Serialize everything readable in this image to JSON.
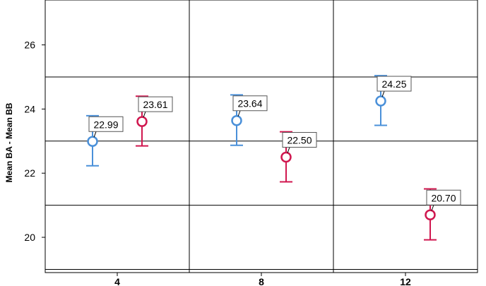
{
  "chart_data": {
    "type": "scatter",
    "ylabel": "Mean BA - Mean BB",
    "xlabel": "",
    "categories": [
      "4",
      "8",
      "12"
    ],
    "ylim": [
      18.9,
      27.4
    ],
    "yticks": [
      20,
      22,
      24,
      26
    ],
    "gridlines_y": [
      19,
      21,
      23,
      25
    ],
    "grid": true,
    "error_bars": true,
    "series": [
      {
        "color": "#4a90d9",
        "values": [
          22.99,
          23.64,
          24.25
        ],
        "lower": [
          22.23,
          22.87,
          23.49
        ],
        "upper": [
          23.79,
          24.44,
          25.04
        ]
      },
      {
        "color": "#d0174f",
        "values": [
          23.61,
          22.5,
          20.7
        ],
        "lower": [
          22.85,
          21.73,
          19.92
        ],
        "upper": [
          24.4,
          23.29,
          21.51
        ]
      }
    ],
    "data_labels": [
      [
        "22.99",
        "23.64",
        "24.25"
      ],
      [
        "23.61",
        "22.50",
        "20.70"
      ]
    ]
  }
}
